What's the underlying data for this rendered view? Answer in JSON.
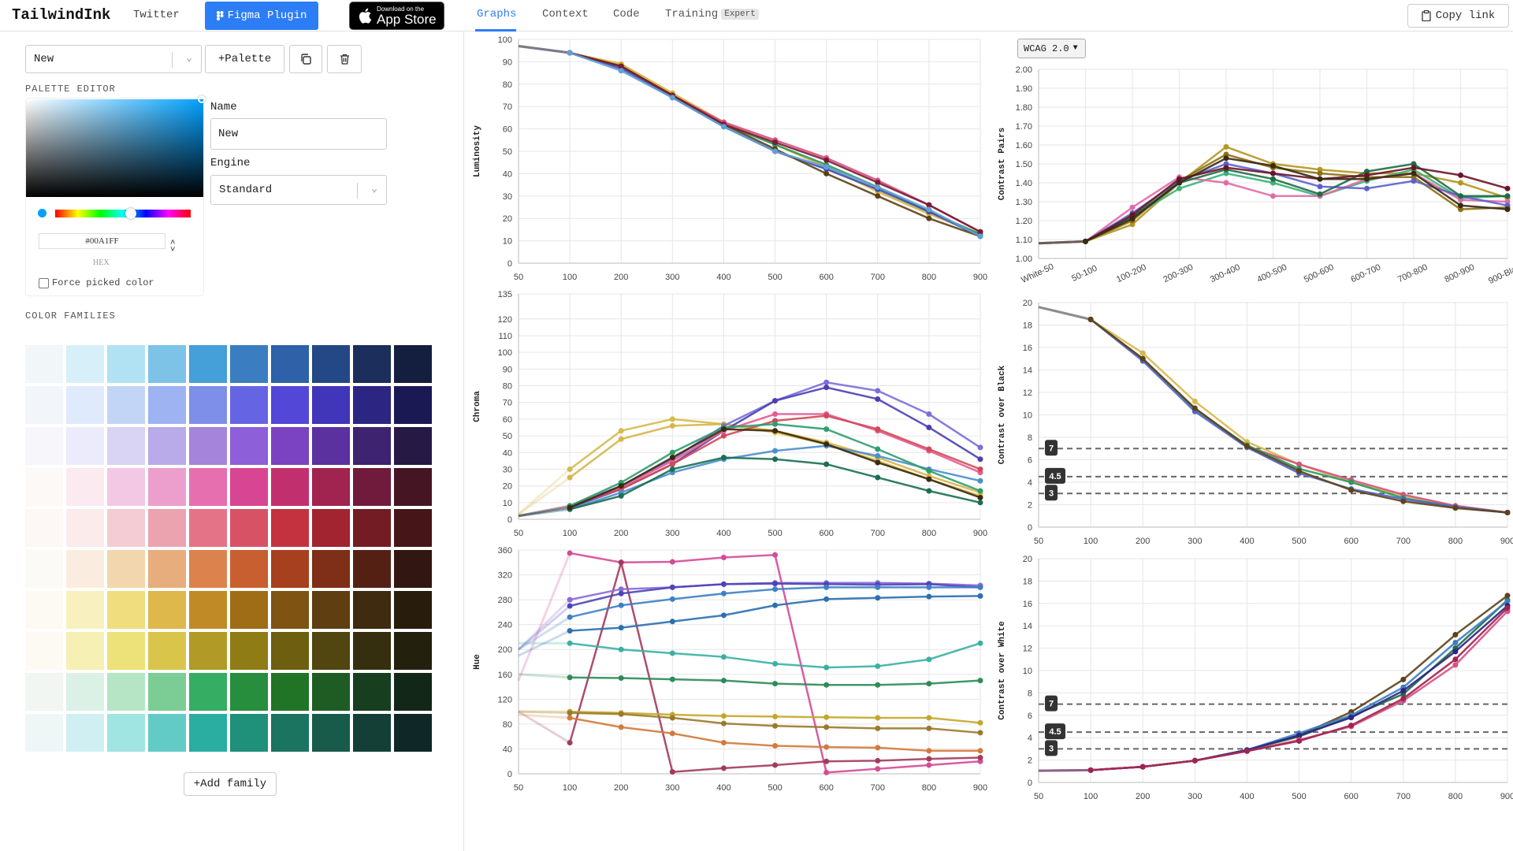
{
  "header": {
    "logo": "TailwindInk",
    "twitter": "Twitter",
    "figma": "Figma Plugin",
    "appstore_small": "Download on the",
    "appstore_big": "App Store",
    "tabs": [
      "Graphs",
      "Context",
      "Code",
      "Training"
    ],
    "expert_badge": "Expert",
    "copy_link": "Copy link"
  },
  "palette": {
    "select_value": "New",
    "add_palette": "+Palette",
    "editor_title": "PALETTE EDITOR",
    "hex_value": "#00A1FF",
    "hex_label": "HEX",
    "force_label": "Force picked color",
    "name_label": "Name",
    "name_value": "New",
    "engine_label": "Engine",
    "engine_value": "Standard",
    "families_title": "COLOR FAMILIES",
    "add_family": "+Add family",
    "accent": "#00a1ff"
  },
  "swatches": [
    [
      "#f1f6f9",
      "#d6eff9",
      "#b1e2f3",
      "#7cc3e7",
      "#459fd8",
      "#3a7ec1",
      "#2e61a8",
      "#244885",
      "#1b2e5c",
      "#141f40"
    ],
    [
      "#f2f6fa",
      "#dfeafc",
      "#c3d5f7",
      "#9db3f2",
      "#7e8fe9",
      "#6565e3",
      "#5247d7",
      "#4135b9",
      "#2c2581",
      "#1b1954"
    ],
    [
      "#f6f6fb",
      "#ebebfb",
      "#d9d3f4",
      "#b9aae9",
      "#a584dc",
      "#8d5fd8",
      "#7b43c2",
      "#5b31a0",
      "#3e2371",
      "#261a45"
    ],
    [
      "#fcf9f7",
      "#fbebf1",
      "#f3c8e5",
      "#ec9fcc",
      "#e66fb0",
      "#d84593",
      "#c22f6f",
      "#a02350",
      "#701b3b",
      "#461524"
    ],
    [
      "#fdf7f6",
      "#fbebeb",
      "#f4ccd3",
      "#eba3b0",
      "#e57388",
      "#d75265",
      "#c4323f",
      "#a12430",
      "#731c24",
      "#461517"
    ],
    [
      "#fcfaf6",
      "#faede0",
      "#f2d6ad",
      "#e7ad7d",
      "#dc834d",
      "#c85f31",
      "#a7401e",
      "#7f2f17",
      "#552014",
      "#321611"
    ],
    [
      "#fcfaf3",
      "#f8f0be",
      "#efdd7e",
      "#deb84a",
      "#c08b27",
      "#9f6d16",
      "#7f5311",
      "#5f3e12",
      "#3e2b10",
      "#281c0c"
    ],
    [
      "#fcfaf2",
      "#f7f0b4",
      "#ede279",
      "#d9c54a",
      "#b19a26",
      "#8f7c14",
      "#6e5e0f",
      "#514510",
      "#352f0f",
      "#23200d"
    ],
    [
      "#f1f6f3",
      "#dcf1e5",
      "#b6e5c6",
      "#7ccd95",
      "#35ad63",
      "#278e3d",
      "#217426",
      "#1f5c24",
      "#173e1e",
      "#122717"
    ],
    [
      "#eef6f6",
      "#d0eff2",
      "#a0e5e1",
      "#63cbc6",
      "#2aaea1",
      "#1f9079",
      "#1b7460",
      "#185b4a",
      "#143f36",
      "#0f2827"
    ]
  ],
  "charts": {
    "luminosity": {
      "ylabel": "Luminosity",
      "x": [
        50,
        100,
        200,
        300,
        400,
        500,
        600,
        700,
        800,
        900
      ],
      "yticks": [
        0,
        10,
        20,
        30,
        40,
        50,
        60,
        70,
        80,
        90,
        100
      ],
      "ylim": [
        0,
        100
      ],
      "series": [
        {
          "color": "#d8b23a",
          "values": [
            97,
            94,
            89,
            76,
            63,
            53,
            43,
            32,
            22,
            13
          ]
        },
        {
          "color": "#d94f83",
          "values": [
            97,
            94,
            88,
            75,
            63,
            55,
            47,
            37,
            26,
            14
          ]
        },
        {
          "color": "#2a9a60",
          "values": [
            97,
            94,
            88,
            75,
            62,
            53,
            44,
            34,
            23,
            13
          ]
        },
        {
          "color": "#3f4fb0",
          "values": [
            97,
            94,
            87,
            74,
            61,
            50,
            42,
            33,
            23,
            12
          ]
        },
        {
          "color": "#5c4117",
          "values": [
            97,
            94,
            88,
            75,
            62,
            51,
            40,
            30,
            20,
            12
          ]
        },
        {
          "color": "#7a1d33",
          "values": [
            97,
            94,
            88,
            75,
            62,
            54,
            46,
            36,
            26,
            14
          ]
        },
        {
          "color": "#5fa0d8",
          "values": [
            97,
            94,
            86,
            74,
            61,
            50,
            43,
            34,
            24,
            12
          ]
        }
      ]
    },
    "contrast_pairs": {
      "ylabel": "Contrast Pairs",
      "wcag": "WCAG 2.0",
      "categories": [
        "White-50",
        "50-100",
        "100-200",
        "200-300",
        "300-400",
        "400-500",
        "500-600",
        "600-700",
        "700-800",
        "800-900",
        "900-Black"
      ],
      "yticks": [
        "1.00",
        "1.10",
        "1.20",
        "1.30",
        "1.40",
        "1.50",
        "1.60",
        "1.70",
        "1.80",
        "1.90",
        "2.00"
      ],
      "ylim": [
        1.0,
        2.0
      ],
      "series": [
        {
          "color": "#b5961f",
          "values": [
            1.08,
            1.09,
            1.18,
            1.4,
            1.59,
            1.5,
            1.47,
            1.45,
            1.45,
            1.4,
            1.32
          ]
        },
        {
          "color": "#8c6f15",
          "values": [
            1.08,
            1.09,
            1.2,
            1.41,
            1.55,
            1.48,
            1.45,
            1.43,
            1.43,
            1.26,
            1.27
          ]
        },
        {
          "color": "#3bb27a",
          "values": [
            1.08,
            1.09,
            1.22,
            1.37,
            1.45,
            1.4,
            1.33,
            1.41,
            1.47,
            1.32,
            1.33
          ]
        },
        {
          "color": "#e06aa8",
          "values": [
            1.08,
            1.09,
            1.27,
            1.43,
            1.4,
            1.33,
            1.33,
            1.42,
            1.45,
            1.31,
            1.3
          ]
        },
        {
          "color": "#5c60cc",
          "values": [
            1.08,
            1.09,
            1.24,
            1.41,
            1.5,
            1.45,
            1.38,
            1.37,
            1.41,
            1.33,
            1.28
          ]
        },
        {
          "color": "#1f6c43",
          "values": [
            1.08,
            1.09,
            1.22,
            1.4,
            1.47,
            1.42,
            1.34,
            1.46,
            1.5,
            1.33,
            1.33
          ]
        },
        {
          "color": "#6b1427",
          "values": [
            1.08,
            1.09,
            1.23,
            1.42,
            1.48,
            1.45,
            1.42,
            1.44,
            1.48,
            1.44,
            1.37
          ]
        },
        {
          "color": "#3a2a0f",
          "values": [
            1.08,
            1.09,
            1.21,
            1.4,
            1.53,
            1.49,
            1.42,
            1.42,
            1.45,
            1.28,
            1.26
          ]
        }
      ]
    },
    "chroma": {
      "ylabel": "Chroma",
      "x": [
        50,
        100,
        200,
        300,
        400,
        500,
        600,
        700,
        800,
        900
      ],
      "yticks": [
        0,
        10,
        20,
        30,
        40,
        50,
        60,
        70,
        80,
        90,
        100,
        110,
        120,
        135
      ],
      "ylim": [
        0,
        135
      ],
      "series": [
        {
          "color": "#d4bb4a",
          "values": [
            3,
            30,
            53,
            60,
            57,
            52,
            45,
            35,
            24,
            14
          ]
        },
        {
          "color": "#d7b44a",
          "values": [
            3,
            25,
            48,
            56,
            57,
            53,
            46,
            37,
            26,
            16
          ]
        },
        {
          "color": "#7a6fda",
          "values": [
            2,
            8,
            20,
            36,
            56,
            71,
            82,
            77,
            63,
            43
          ]
        },
        {
          "color": "#4b3fb0",
          "values": [
            2,
            7,
            18,
            33,
            53,
            71,
            79,
            72,
            55,
            36
          ]
        },
        {
          "color": "#e55c92",
          "values": [
            2,
            8,
            19,
            35,
            53,
            63,
            63,
            53,
            41,
            28
          ]
        },
        {
          "color": "#d14a5a",
          "values": [
            2,
            8,
            18,
            33,
            50,
            59,
            62,
            54,
            42,
            30
          ]
        },
        {
          "color": "#4a8fd0",
          "values": [
            2,
            6,
            16,
            28,
            36,
            41,
            44,
            38,
            30,
            23
          ]
        },
        {
          "color": "#2f9c6f",
          "values": [
            2,
            8,
            22,
            40,
            55,
            57,
            54,
            42,
            29,
            17
          ]
        },
        {
          "color": "#1b6f52",
          "values": [
            2,
            6,
            14,
            30,
            37,
            36,
            33,
            25,
            17,
            10
          ]
        },
        {
          "color": "#3a2a10",
          "values": [
            2,
            7,
            20,
            37,
            54,
            53,
            45,
            34,
            24,
            13
          ]
        }
      ]
    },
    "hue": {
      "ylabel": "Hue",
      "x": [
        50,
        100,
        200,
        300,
        400,
        500,
        600,
        700,
        800,
        900
      ],
      "yticks": [
        0,
        40,
        80,
        120,
        160,
        200,
        240,
        280,
        320,
        360
      ],
      "ylim": [
        0,
        360
      ],
      "series": [
        {
          "color": "#d44b97",
          "values": [
            150,
            355,
            340,
            341,
            348,
            352,
            2,
            8,
            14,
            20
          ]
        },
        {
          "color": "#a33a5c",
          "values": [
            100,
            50,
            340,
            3,
            9,
            14,
            20,
            21,
            24,
            26
          ]
        },
        {
          "color": "#8b69d8",
          "values": [
            200,
            280,
            297,
            300,
            305,
            307,
            307,
            307,
            306,
            303
          ]
        },
        {
          "color": "#4c45b8",
          "values": [
            200,
            270,
            290,
            300,
            305,
            306,
            305,
            304,
            305,
            300
          ]
        },
        {
          "color": "#3f7fc4",
          "values": [
            200,
            252,
            271,
            281,
            290,
            297,
            300,
            300,
            300,
            300
          ]
        },
        {
          "color": "#2b6fb0",
          "values": [
            190,
            230,
            235,
            245,
            255,
            271,
            281,
            283,
            285,
            286
          ]
        },
        {
          "color": "#3ab0a2",
          "values": [
            210,
            210,
            200,
            194,
            188,
            177,
            171,
            173,
            184,
            210
          ]
        },
        {
          "color": "#2e8b57",
          "values": [
            160,
            155,
            154,
            152,
            150,
            145,
            143,
            143,
            145,
            150
          ]
        },
        {
          "color": "#c4a72a",
          "values": [
            100,
            100,
            98,
            95,
            93,
            92,
            91,
            90,
            90,
            82
          ]
        },
        {
          "color": "#d37a3b",
          "values": [
            95,
            90,
            75,
            65,
            50,
            45,
            43,
            42,
            37,
            37
          ]
        },
        {
          "color": "#9a7a2a",
          "values": [
            100,
            98,
            96,
            90,
            81,
            77,
            75,
            73,
            73,
            66
          ]
        }
      ]
    },
    "contrast_black": {
      "ylabel": "Contrast over Black",
      "x": [
        50,
        100,
        200,
        300,
        400,
        500,
        600,
        700,
        800,
        900
      ],
      "yticks": [
        0,
        2,
        4,
        6,
        8,
        10,
        12,
        14,
        16,
        18,
        20
      ],
      "ylim": [
        0,
        20
      ],
      "thresholds": [
        "7",
        "4.5",
        "3"
      ],
      "threshold_values": [
        7,
        4.5,
        3
      ],
      "series": [
        {
          "color": "#d7b84a",
          "values": [
            19.6,
            18.5,
            15.5,
            11.2,
            7.6,
            5.6,
            4.0,
            2.8,
            1.9,
            1.3
          ]
        },
        {
          "color": "#d5537e",
          "values": [
            19.6,
            18.5,
            15.0,
            10.5,
            7.2,
            5.6,
            4.2,
            2.9,
            1.9,
            1.3
          ]
        },
        {
          "color": "#2a9a60",
          "values": [
            19.6,
            18.5,
            15.0,
            10.5,
            7.3,
            5.2,
            4.0,
            2.6,
            1.8,
            1.3
          ]
        },
        {
          "color": "#4f65c8",
          "values": [
            19.6,
            18.5,
            14.8,
            10.3,
            7.1,
            4.8,
            3.4,
            2.5,
            1.8,
            1.3
          ]
        },
        {
          "color": "#5e4117",
          "values": [
            19.6,
            18.5,
            15.0,
            10.6,
            7.2,
            5.0,
            3.3,
            2.3,
            1.7,
            1.3
          ]
        }
      ]
    },
    "contrast_white": {
      "ylabel": "Contrast over White",
      "x": [
        50,
        100,
        200,
        300,
        400,
        500,
        600,
        700,
        800,
        900
      ],
      "yticks": [
        0,
        2,
        4,
        6,
        8,
        10,
        12,
        14,
        16,
        18,
        20
      ],
      "ylim": [
        0,
        20
      ],
      "thresholds": [
        "7",
        "4.5",
        "3"
      ],
      "threshold_values": [
        7,
        4.5,
        3
      ],
      "series": [
        {
          "color": "#5e4117",
          "values": [
            1.05,
            1.1,
            1.4,
            1.95,
            2.9,
            4.2,
            6.3,
            9.2,
            13.2,
            16.7
          ]
        },
        {
          "color": "#1f6c43",
          "values": [
            1.05,
            1.1,
            1.4,
            1.95,
            2.9,
            4.1,
            5.9,
            7.9,
            12.0,
            16.3
          ]
        },
        {
          "color": "#3a7ec1",
          "values": [
            1.05,
            1.1,
            1.4,
            1.95,
            2.9,
            4.4,
            6.0,
            8.5,
            12.5,
            16.2
          ]
        },
        {
          "color": "#2c2581",
          "values": [
            1.05,
            1.1,
            1.4,
            1.95,
            2.9,
            4.2,
            5.8,
            8.2,
            11.7,
            15.8
          ]
        },
        {
          "color": "#d94f83",
          "values": [
            1.05,
            1.1,
            1.4,
            1.95,
            2.8,
            3.8,
            5.0,
            7.3,
            10.5,
            15.3
          ]
        },
        {
          "color": "#a02350",
          "values": [
            1.05,
            1.1,
            1.4,
            1.95,
            2.8,
            3.7,
            5.1,
            7.5,
            11.0,
            15.6
          ]
        }
      ]
    }
  }
}
